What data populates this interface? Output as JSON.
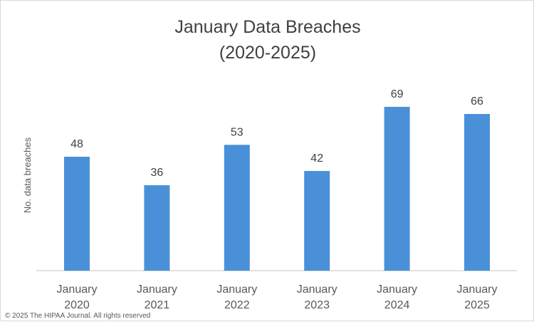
{
  "chart_data": {
    "type": "bar",
    "title_lines": [
      "January Data Breaches",
      "(2020-2025)"
    ],
    "categories": [
      [
        "January",
        "2020"
      ],
      [
        "January",
        "2021"
      ],
      [
        "January",
        "2022"
      ],
      [
        "January",
        "2023"
      ],
      [
        "January",
        "2024"
      ],
      [
        "January",
        "2025"
      ]
    ],
    "values": [
      48,
      36,
      53,
      42,
      69,
      66
    ],
    "xlabel": "",
    "ylabel": "No. data breaches",
    "ylim": [
      0,
      80
    ],
    "grid": false,
    "data_labels": true,
    "bar_color": "#4a90d9"
  },
  "footer": "© 2025 The HIPAA Journal. All rights reserved"
}
